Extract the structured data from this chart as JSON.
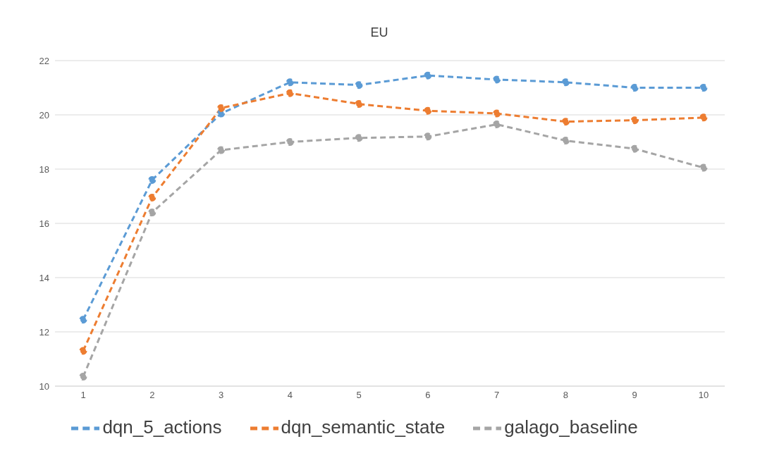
{
  "chart_data": {
    "type": "line",
    "title": "EU",
    "categories": [
      "1",
      "2",
      "3",
      "4",
      "5",
      "6",
      "7",
      "8",
      "9",
      "10"
    ],
    "series": [
      {
        "name": "dqn_5_actions",
        "color": "#5b9bd5",
        "values": [
          12.45,
          17.6,
          20.05,
          21.2,
          21.1,
          21.45,
          21.3,
          21.2,
          21.0,
          21.0
        ]
      },
      {
        "name": "dqn_semantic_state",
        "color": "#ed7d31",
        "values": [
          11.3,
          16.95,
          20.25,
          20.8,
          20.4,
          20.15,
          20.05,
          19.75,
          19.8,
          19.9
        ]
      },
      {
        "name": "galago_baseline",
        "color": "#a5a5a5",
        "values": [
          10.35,
          16.4,
          18.7,
          19.0,
          19.15,
          19.2,
          19.65,
          19.05,
          18.75,
          18.05
        ]
      }
    ],
    "ylim": [
      10,
      22
    ],
    "yticks": [
      10,
      12,
      14,
      16,
      18,
      20,
      22
    ],
    "grid": "y",
    "legend": "bottom",
    "marker": "circle",
    "line_style": "dashed"
  }
}
